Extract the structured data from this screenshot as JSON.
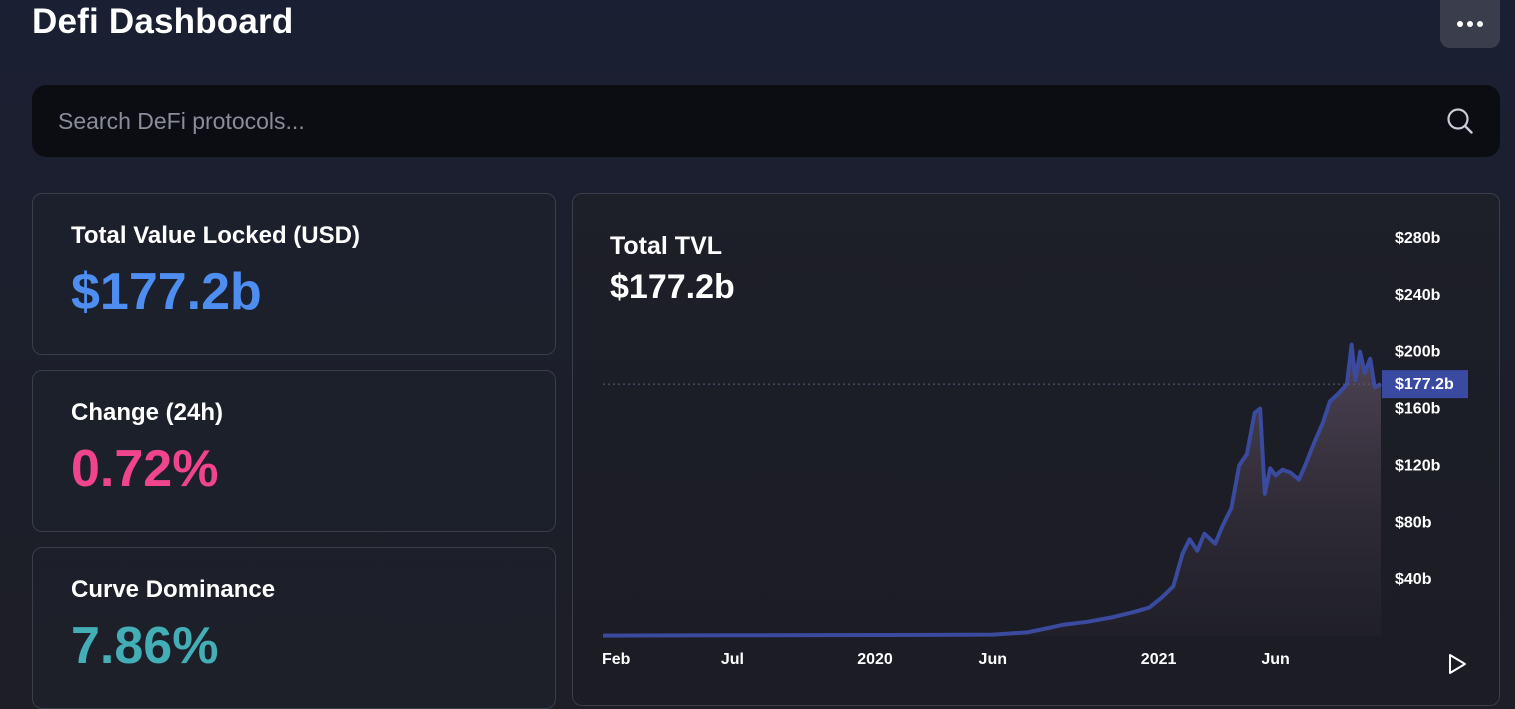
{
  "header": {
    "title": "Defi Dashboard",
    "menu_icon": "more-horizontal-icon"
  },
  "search": {
    "placeholder": "Search DeFi protocols...",
    "icon": "search-icon"
  },
  "cards": [
    {
      "label": "Total Value Locked (USD)",
      "value": "$177.2b",
      "color": "#4d8ef0"
    },
    {
      "label": "Change (24h)",
      "value": "0.72%",
      "color": "#f0448e"
    },
    {
      "label": "Curve Dominance",
      "value": "7.86%",
      "color": "#44aeb6"
    }
  ],
  "chart": {
    "title": "Total TVL",
    "value": "$177.2b",
    "current_label": "$177.2b",
    "play_icon": "play-icon"
  },
  "chart_data": {
    "type": "area",
    "title": "Total TVL",
    "ylim": [
      0,
      280
    ],
    "y_ticks": [
      "$280b",
      "$240b",
      "$200b",
      "$160b",
      "$120b",
      "$80b",
      "$40b"
    ],
    "y_tick_values": [
      280,
      240,
      200,
      160,
      120,
      80,
      40
    ],
    "x_ticks": [
      "Feb",
      "Jul",
      "2020",
      "Jun",
      "2021",
      "Jun"
    ],
    "x_tick_dates": [
      "2019-02-01",
      "2019-07-01",
      "2020-01-01",
      "2020-06-01",
      "2021-01-01",
      "2021-06-01"
    ],
    "xlim": [
      "2019-01-15",
      "2021-10-15"
    ],
    "current_value": 177.2,
    "line_color": "#3a4a9e",
    "series": [
      {
        "x": [
          "2019-01-15",
          "2019-07-01",
          "2020-01-01",
          "2020-03-15",
          "2020-06-01",
          "2020-07-15",
          "2020-08-15",
          "2020-09-01",
          "2020-10-01",
          "2020-11-01",
          "2020-12-01",
          "2020-12-20",
          "2021-01-05",
          "2021-01-20",
          "2021-02-01",
          "2021-02-10",
          "2021-02-20",
          "2021-03-01",
          "2021-03-15",
          "2021-03-25",
          "2021-04-05",
          "2021-04-15",
          "2021-04-25",
          "2021-05-05",
          "2021-05-12",
          "2021-05-18",
          "2021-05-25",
          "2021-06-01",
          "2021-06-10",
          "2021-06-20",
          "2021-07-01",
          "2021-07-10",
          "2021-07-20",
          "2021-08-01",
          "2021-08-10",
          "2021-08-20",
          "2021-09-01",
          "2021-09-07",
          "2021-09-12",
          "2021-09-18",
          "2021-09-24",
          "2021-10-01",
          "2021-10-07",
          "2021-10-15"
        ],
        "y": [
          0.3,
          0.5,
          0.7,
          0.8,
          1.0,
          2.5,
          6,
          8,
          10,
          13,
          17,
          20,
          27,
          35,
          58,
          68,
          60,
          72,
          65,
          78,
          90,
          120,
          128,
          157,
          160,
          100,
          118,
          113,
          117,
          115,
          110,
          121,
          135,
          150,
          165,
          170,
          177,
          205,
          180,
          200,
          185,
          195,
          175,
          177.2
        ]
      }
    ]
  }
}
